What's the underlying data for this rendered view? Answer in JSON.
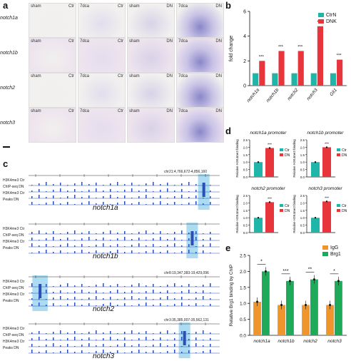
{
  "panel_a": {
    "letter": "a",
    "row_labels": [
      "notch1a",
      "notch1b",
      "notch2",
      "notch3"
    ],
    "rows": [
      {
        "tiles": [
          [
            "sham",
            "Ctr"
          ],
          [
            "7dca",
            "Ctr"
          ],
          [
            "sham",
            "DN"
          ],
          [
            "7dca",
            "DN"
          ]
        ]
      },
      {
        "tiles": [
          [
            "sham",
            "Ctr"
          ],
          [
            "7dca",
            "Ctr"
          ],
          [
            "sham",
            "DN"
          ],
          [
            "7dca",
            "DN"
          ]
        ]
      },
      {
        "tiles": [
          [
            "sham",
            "Ctr"
          ],
          [
            "7dca",
            "Ctr"
          ],
          [
            "sham",
            "DN"
          ],
          [
            "7dca",
            "DN"
          ]
        ]
      },
      {
        "tiles": [
          [
            "sham",
            "Ctr"
          ],
          [
            "7dca",
            "Ctr"
          ],
          [
            "sham",
            "DN"
          ],
          [
            "7dca",
            "DN"
          ]
        ]
      }
    ],
    "tile_colors": [
      "#f1f0ee",
      "#e3ddee",
      "#d8d2e8",
      "#c6c0e0"
    ]
  },
  "panel_b": {
    "letter": "b",
    "chart_data": {
      "type": "bar",
      "categories": [
        "notch1a",
        "notch1b",
        "notch2",
        "notch3",
        "Gli1"
      ],
      "series": [
        {
          "name": "CtrN",
          "values": [
            1.0,
            1.0,
            1.0,
            1.0,
            1.0
          ],
          "color": "#1fb5a8"
        },
        {
          "name": "DNK",
          "values": [
            2.0,
            2.8,
            2.8,
            4.8,
            2.1
          ],
          "color": "#e8353b"
        }
      ],
      "ylabel": "fold change",
      "ylim": [
        0,
        6
      ],
      "yticks": [
        "0",
        "2",
        "4",
        "6"
      ],
      "significance": [
        "***",
        "***",
        "***",
        "***",
        "***"
      ],
      "legend_position": "top-right"
    }
  },
  "panel_c": {
    "letter": "c",
    "tracks": [
      {
        "gene": "notch1a",
        "coords": "chr21:4,766,672-4,856,160",
        "rows": [
          "H3K4me3 Ctr",
          "ChIP-seq DN",
          "H3K4me3 Ctr",
          "Peaks DN"
        ],
        "scale": "100 kb"
      },
      {
        "gene": "notch1b",
        "coords": "",
        "rows": [
          "H3K4me3 Ctr",
          "ChIP-seq DN",
          "H3K4me3 Ctr",
          "Peaks DN"
        ],
        "scale": "10 kb"
      },
      {
        "gene": "notch2",
        "coords": "chr8:19,347,383-19,429,096",
        "rows": [
          "H3K4me3 Ctr",
          "ChIP-seq DN",
          "H3K4me3 Ctr",
          "Peaks DN"
        ],
        "scale": "10 kb"
      },
      {
        "gene": "notch3",
        "coords": "chr3:35,385,007-35,562,131",
        "rows": [
          "H3K4me3 Ctr",
          "ChIP-seq DN",
          "H3K4me3 Ctr",
          "Peaks DN"
        ],
        "scale": "10 kb"
      }
    ]
  },
  "panel_d": {
    "letter": "d",
    "chart_data": [
      {
        "type": "bar",
        "title": "notch1a promoter",
        "categories": [
          "Ctr",
          "DN"
        ],
        "values": [
          1.0,
          1.95
        ],
        "ylabel": "Relative H3K4me3 binding",
        "ylim": [
          0,
          2.5
        ],
        "yticks": [
          "0.0",
          "0.5",
          "1.0",
          "1.5",
          "2.0",
          "2.5"
        ],
        "significance": "***",
        "legend": [
          "Ctr",
          "DN"
        ]
      },
      {
        "type": "bar",
        "title": "notch1b promoter",
        "categories": [
          "Ctr",
          "DN"
        ],
        "values": [
          1.0,
          2.0
        ],
        "ylabel": "Relative H3K4me3 binding",
        "ylim": [
          0,
          2.5
        ],
        "yticks": [
          "0.0",
          "0.5",
          "1.0",
          "1.5",
          "2.0",
          "2.5"
        ],
        "significance": "***",
        "legend": [
          "Ctr",
          "DN"
        ]
      },
      {
        "type": "bar",
        "title": "notch2 promoter",
        "categories": [
          "Ctr",
          "DN"
        ],
        "values": [
          1.0,
          2.05
        ],
        "ylabel": "Relative H3K4me3 binding",
        "ylim": [
          0,
          2.5
        ],
        "yticks": [
          "0.0",
          "0.5",
          "1.0",
          "1.5",
          "2.0",
          "2.5"
        ],
        "significance": "***",
        "legend": [
          "Ctr",
          "DN"
        ]
      },
      {
        "type": "bar",
        "title": "notch3 promoter",
        "categories": [
          "Ctr",
          "DN"
        ],
        "values": [
          1.0,
          2.1
        ],
        "ylabel": "Relative H3K4me3 binding",
        "ylim": [
          0,
          2.5
        ],
        "yticks": [
          "0.0",
          "0.5",
          "1.0",
          "1.5",
          "2.0",
          "2.5"
        ],
        "significance": "***",
        "legend": [
          "Ctr",
          "DN"
        ]
      }
    ],
    "colors": {
      "Ctr": "#1fb5a8",
      "DN": "#e8353b"
    }
  },
  "panel_e": {
    "letter": "e",
    "chart_data": {
      "type": "bar",
      "categories": [
        "notch1a",
        "notch1b",
        "notch2",
        "notch3"
      ],
      "series": [
        {
          "name": "IgG",
          "values": [
            1.05,
            0.95,
            0.95,
            0.95
          ],
          "color": "#f0952b"
        },
        {
          "name": "Brg1",
          "values": [
            2.0,
            1.7,
            1.75,
            1.7
          ],
          "color": "#1faa5a"
        }
      ],
      "ylabel": "Relative Brg1 binding by ChIP",
      "ylim": [
        0,
        2.5
      ],
      "yticks": [
        "0.0",
        "0.5",
        "1.0",
        "1.5",
        "2.0",
        "2.5"
      ],
      "significance": [
        "*",
        "***",
        "**",
        "*"
      ],
      "legend_position": "top-right"
    }
  }
}
